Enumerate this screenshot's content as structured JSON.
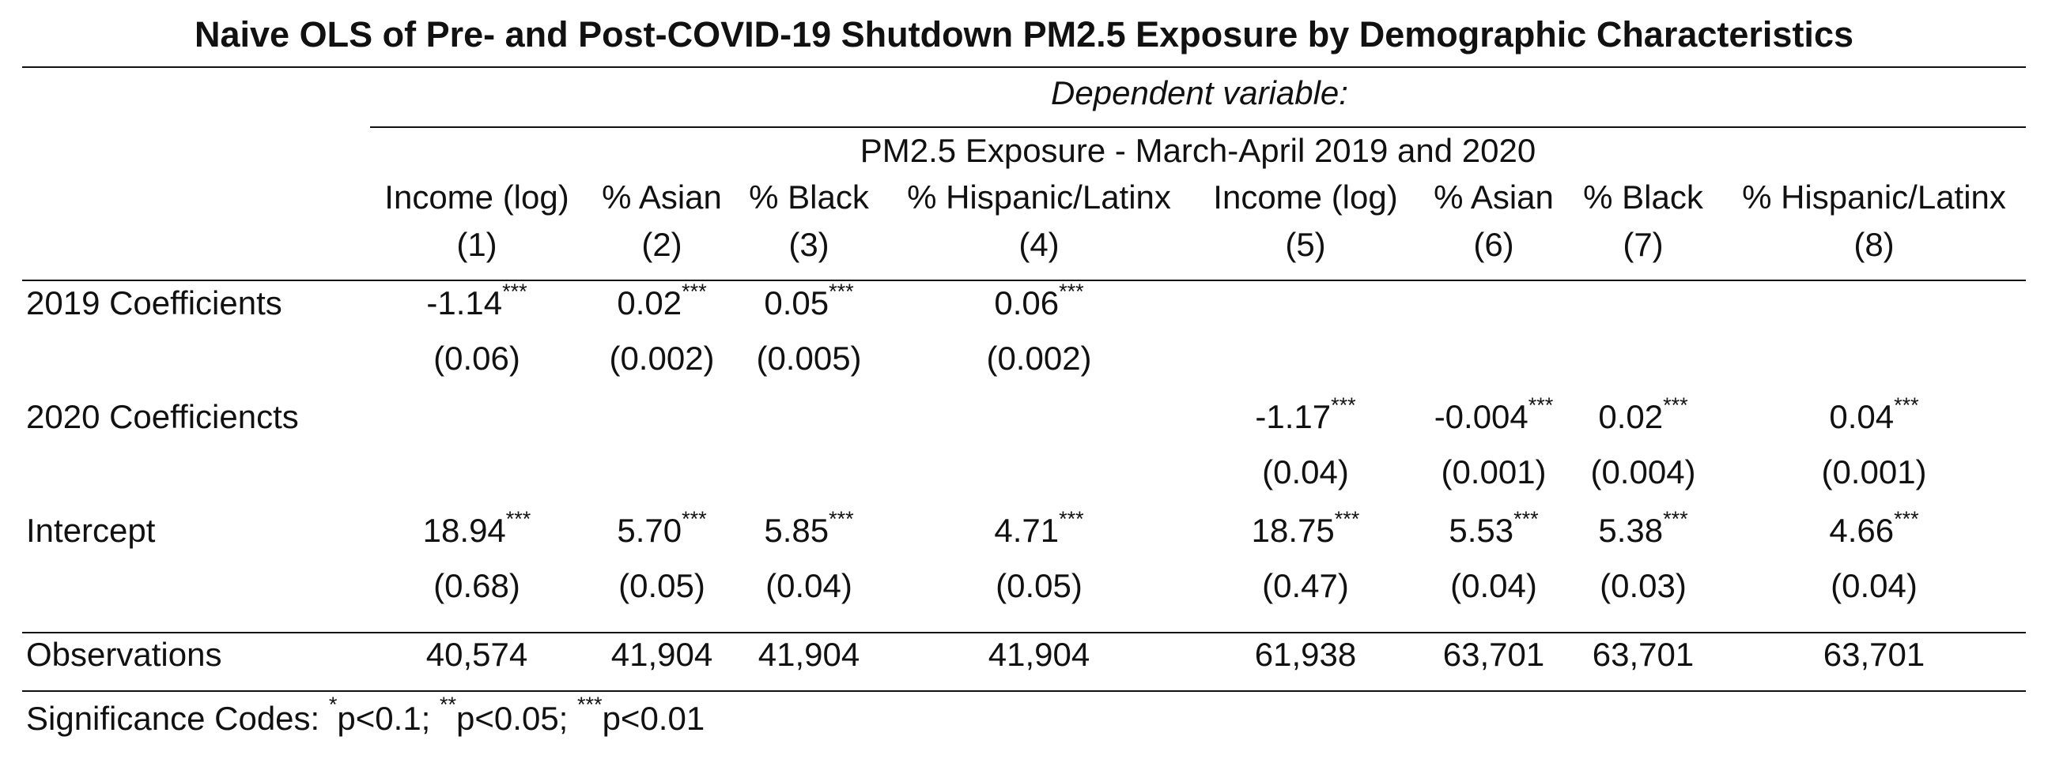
{
  "title": "Naive OLS of Pre- and Post-COVID-19 Shutdown PM2.5 Exposure by Demographic Characteristics",
  "header": {
    "dependent_variable_label": "Dependent variable:",
    "dependent_variable": "PM2.5 Exposure - March-April 2019 and 2020",
    "columns": [
      {
        "name": "Income (log)",
        "number": "(1)"
      },
      {
        "name": "% Asian",
        "number": "(2)"
      },
      {
        "name": "% Black",
        "number": "(3)"
      },
      {
        "name": "% Hispanic/Latinx",
        "number": "(4)"
      },
      {
        "name": "Income (log)",
        "number": "(5)"
      },
      {
        "name": "% Asian",
        "number": "(6)"
      },
      {
        "name": "% Black",
        "number": "(7)"
      },
      {
        "name": "% Hispanic/Latinx",
        "number": "(8)"
      }
    ]
  },
  "rows": [
    {
      "label": "2019 Coefficients",
      "estimates": [
        "-1.14",
        "0.02",
        "0.05",
        "0.06",
        "",
        "",
        "",
        ""
      ],
      "stars": [
        "***",
        "***",
        "***",
        "***",
        "",
        "",
        "",
        ""
      ],
      "std_errors": [
        "(0.06)",
        "(0.002)",
        "(0.005)",
        "(0.002)",
        "",
        "",
        "",
        ""
      ]
    },
    {
      "label": "2020 Coefficiencts",
      "estimates": [
        "",
        "",
        "",
        "",
        "-1.17",
        "-0.004",
        "0.02",
        "0.04"
      ],
      "stars": [
        "",
        "",
        "",
        "",
        "***",
        "***",
        "***",
        "***"
      ],
      "std_errors": [
        "",
        "",
        "",
        "",
        "(0.04)",
        "(0.001)",
        "(0.004)",
        "(0.001)"
      ]
    },
    {
      "label": "Intercept",
      "estimates": [
        "18.94",
        "5.70",
        "5.85",
        "4.71",
        "18.75",
        "5.53",
        "5.38",
        "4.66"
      ],
      "stars": [
        "***",
        "***",
        "***",
        "***",
        "***",
        "***",
        "***",
        "***"
      ],
      "std_errors": [
        "(0.68)",
        "(0.05)",
        "(0.04)",
        "(0.05)",
        "(0.47)",
        "(0.04)",
        "(0.03)",
        "(0.04)"
      ]
    }
  ],
  "observations": {
    "label": "Observations",
    "values": [
      "40,574",
      "41,904",
      "41,904",
      "41,904",
      "61,938",
      "63,701",
      "63,701",
      "63,701"
    ]
  },
  "footnote": {
    "label": "Significance Codes:",
    "codes": [
      {
        "stars": "*",
        "text": "p<0.1;"
      },
      {
        "stars": "**",
        "text": "p<0.05;"
      },
      {
        "stars": "***",
        "text": "p<0.01"
      }
    ]
  }
}
